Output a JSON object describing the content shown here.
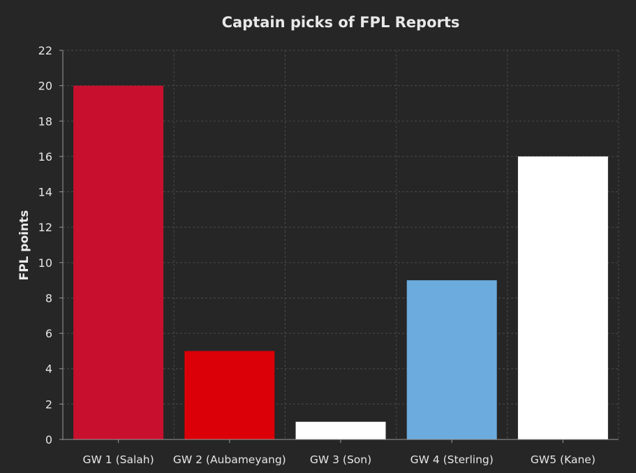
{
  "chart_data": {
    "type": "bar",
    "title": "Captain picks of FPL Reports",
    "xlabel": "",
    "ylabel": "FPL points",
    "categories": [
      "GW 1 (Salah)",
      "GW 2 (Aubameyang)",
      "GW 3 (Son)",
      "GW 4 (Sterling)",
      "GW5 (Kane)"
    ],
    "values": [
      20,
      5,
      1,
      9,
      16
    ],
    "colors": [
      "#c8102e",
      "#db0007",
      "#ffffff",
      "#6cabdd",
      "#ffffff"
    ],
    "ylim": [
      0,
      22
    ],
    "yticks": [
      0,
      2,
      4,
      6,
      8,
      10,
      12,
      14,
      16,
      18,
      20,
      22
    ],
    "grid": true,
    "background": "#262626"
  }
}
